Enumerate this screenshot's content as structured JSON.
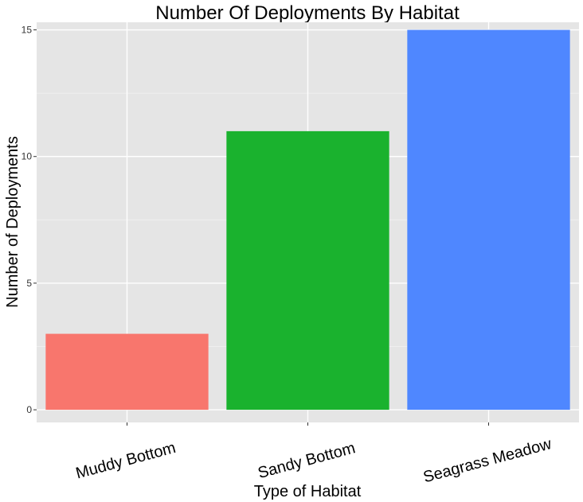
{
  "chart_data": {
    "type": "bar",
    "title": "Number Of Deployments By Habitat",
    "xlabel": "Type of Habitat",
    "ylabel": "Number of Deployments",
    "categories": [
      "Muddy Bottom",
      "Sandy Bottom",
      "Seagrass Meadow"
    ],
    "values": [
      3,
      11,
      15
    ],
    "colors": [
      "#F8766D",
      "#1AB22E",
      "#4F87FF"
    ],
    "ylim": [
      -0.5,
      15.3
    ],
    "yticks": [
      0,
      5,
      10,
      15
    ],
    "grid": true,
    "background": "#E5E5E5"
  }
}
